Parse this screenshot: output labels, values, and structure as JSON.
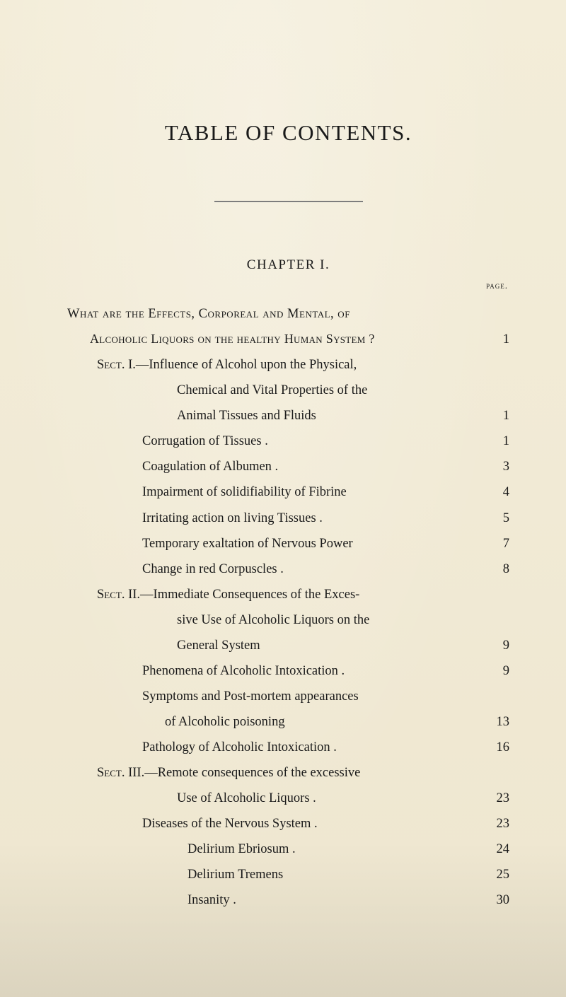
{
  "title": "TABLE OF CONTENTS.",
  "chapter": "CHAPTER I.",
  "page_label": "page.",
  "question": {
    "line1_pre": "What are the Effects, Corporeal and Mental, of",
    "line2_pre": "Alcoholic Liquors on the healthy Human System ?",
    "page": "1"
  },
  "sect1": {
    "label": "Sect. I.",
    "intro_l1": "—Influence of Alcohol upon the Physical,",
    "intro_l2": "Chemical and Vital Properties of the",
    "intro_l3": "Animal Tissues and Fluids",
    "intro_page": "1",
    "items": [
      {
        "t": "Corrugation of Tissues .",
        "p": "1"
      },
      {
        "t": "Coagulation of Albumen .",
        "p": "3"
      },
      {
        "t": "Impairment of solidifiability of Fibrine",
        "p": "4"
      },
      {
        "t": "Irritating action on living Tissues .",
        "p": "5"
      },
      {
        "t": "Temporary exaltation of Nervous Power",
        "p": "7"
      },
      {
        "t": "Change in red Corpuscles .",
        "p": "8"
      }
    ]
  },
  "sect2": {
    "label": "Sect. II.",
    "intro_l1": "—Immediate Consequences of the Exces-",
    "intro_l2": "sive Use of Alcoholic Liquors on the",
    "intro_l3": "General System",
    "intro_page": "9",
    "items": [
      {
        "t": "Phenomena of Alcoholic Intoxication .",
        "p": "9"
      }
    ],
    "wrap_l1": "Symptoms and Post-mortem appearances",
    "wrap_l2": "of Alcoholic poisoning",
    "wrap_page": "13",
    "tail": [
      {
        "t": "Pathology of Alcoholic Intoxication .",
        "p": "16"
      }
    ]
  },
  "sect3": {
    "label": "Sect. III.",
    "intro_l1": "—Remote consequences of the excessive",
    "intro_l2": "Use of Alcoholic Liquors .",
    "intro_page": "23",
    "items": [
      {
        "t": "Diseases of the Nervous System .",
        "p": "23"
      }
    ],
    "subs": [
      {
        "t": "Delirium Ebriosum .",
        "p": "24"
      },
      {
        "t": "Delirium Tremens",
        "p": "25"
      },
      {
        "t": "Insanity .",
        "p": "30"
      }
    ]
  }
}
